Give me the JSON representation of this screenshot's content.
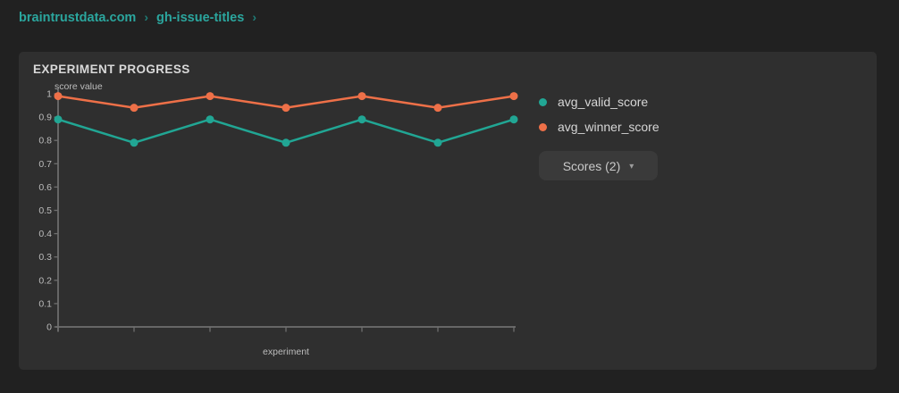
{
  "breadcrumb": {
    "separator": "›",
    "items": [
      {
        "label": "braintrustdata.com"
      },
      {
        "label": "gh-issue-titles"
      }
    ]
  },
  "card": {
    "title": "EXPERIMENT PROGRESS"
  },
  "legend": {
    "items": [
      {
        "label": "avg_valid_score",
        "color": "#21a694"
      },
      {
        "label": "avg_winner_score",
        "color": "#ee7048"
      }
    ]
  },
  "scores_button": {
    "label": "Scores (2)",
    "caret": "▾"
  },
  "chart_data": {
    "type": "line",
    "title": "EXPERIMENT PROGRESS",
    "xlabel": "experiment",
    "ylabel": "score value",
    "x": [
      1,
      2,
      3,
      4,
      5,
      6,
      7
    ],
    "x_tick_labels": [
      "",
      "",
      "",
      "",
      "",
      "",
      ""
    ],
    "series": [
      {
        "name": "avg_valid_score",
        "color": "#21a694",
        "values": [
          0.89,
          0.79,
          0.89,
          0.79,
          0.89,
          0.79,
          0.89
        ]
      },
      {
        "name": "avg_winner_score",
        "color": "#ee7048",
        "values": [
          0.99,
          0.94,
          0.99,
          0.94,
          0.99,
          0.94,
          0.99
        ]
      }
    ],
    "ylim": [
      0,
      1
    ],
    "yticks": [
      0,
      0.1,
      0.2,
      0.3,
      0.4,
      0.5,
      0.6,
      0.7,
      0.8,
      0.9,
      1
    ],
    "grid": false,
    "legend_position": "right"
  },
  "colors": {
    "page_bg": "#212121",
    "card_bg": "#2f2f2f",
    "breadcrumb": "#2ba69e",
    "axis": "#6f6f6f",
    "tick_label": "#bdbdbd",
    "series_teal": "#21a694",
    "series_orange": "#ee7048",
    "button_bg": "#3a3a3a"
  }
}
